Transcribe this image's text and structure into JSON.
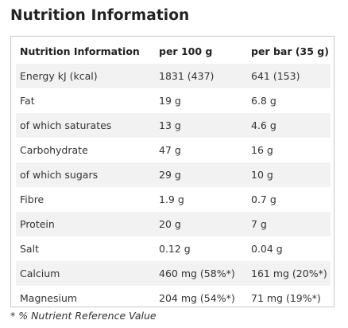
{
  "title": "Nutrition Information",
  "table": {
    "headers": [
      "Nutrition Information",
      "per 100 g",
      "per bar (35 g)"
    ],
    "rows": [
      [
        "Energy kJ (kcal)",
        "1831 (437)",
        "641 (153)"
      ],
      [
        "Fat",
        "19 g",
        "6.8 g"
      ],
      [
        "of which saturates",
        "13 g",
        "4.6 g"
      ],
      [
        "Carbohydrate",
        "47 g",
        "16 g"
      ],
      [
        "of which sugars",
        "29 g",
        "10 g"
      ],
      [
        "Fibre",
        "1.9 g",
        "0.7 g"
      ],
      [
        "Protein",
        "20 g",
        "7 g"
      ],
      [
        "Salt",
        "0.12 g",
        "0.04 g"
      ],
      [
        "Calcium",
        "460 mg (58%*)",
        "161 mg (20%*)"
      ],
      [
        "Magnesium",
        "204 mg (54%*)",
        "71 mg (19%*)"
      ]
    ]
  },
  "footnote": "* % Nutrient Reference Value",
  "colors": {
    "stripe": "#f2f2f2",
    "border": "#c8c8c8",
    "text": "#333333"
  }
}
